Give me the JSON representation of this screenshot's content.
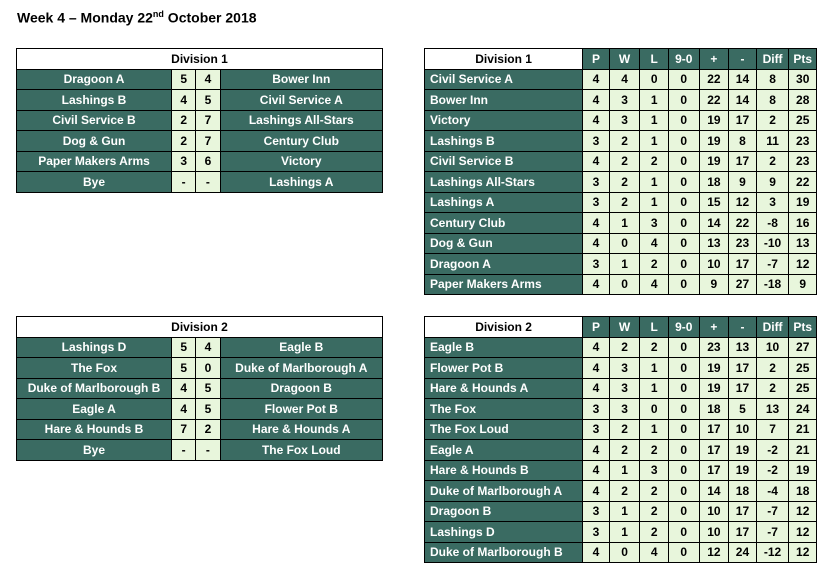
{
  "title": {
    "main": "Week 4 – Monday 22",
    "sup": "nd",
    "rest": " October 2018"
  },
  "fixtures": [
    {
      "division": "Division 1",
      "rows": [
        {
          "home": "Dragoon A",
          "hs": "5",
          "as": "4",
          "away": "Bower Inn"
        },
        {
          "home": "Lashings B",
          "hs": "4",
          "as": "5",
          "away": "Civil Service A"
        },
        {
          "home": "Civil Service B",
          "hs": "2",
          "as": "7",
          "away": "Lashings All-Stars"
        },
        {
          "home": "Dog & Gun",
          "hs": "2",
          "as": "7",
          "away": "Century Club"
        },
        {
          "home": "Paper Makers Arms",
          "hs": "3",
          "as": "6",
          "away": "Victory"
        },
        {
          "home": "Bye",
          "hs": "-",
          "as": "-",
          "away": "Lashings A"
        }
      ]
    },
    {
      "division": "Division 2",
      "rows": [
        {
          "home": "Lashings D",
          "hs": "5",
          "as": "4",
          "away": "Eagle B"
        },
        {
          "home": "The Fox",
          "hs": "5",
          "as": "0",
          "away": "Duke of Marlborough A"
        },
        {
          "home": "Duke of Marlborough B",
          "hs": "4",
          "as": "5",
          "away": "Dragoon B"
        },
        {
          "home": "Eagle A",
          "hs": "4",
          "as": "5",
          "away": "Flower Pot B"
        },
        {
          "home": "Hare & Hounds B",
          "hs": "7",
          "as": "2",
          "away": "Hare & Hounds A"
        },
        {
          "home": "Bye",
          "hs": "-",
          "as": "-",
          "away": "The Fox Loud"
        }
      ]
    }
  ],
  "league_headers": [
    "P",
    "W",
    "L",
    "9-0",
    "+",
    "-",
    "Diff",
    "Pts"
  ],
  "leagues": [
    {
      "division": "Division 1",
      "rows": [
        [
          "Civil Service A",
          "4",
          "4",
          "0",
          "0",
          "22",
          "14",
          "8",
          "30"
        ],
        [
          "Bower Inn",
          "4",
          "3",
          "1",
          "0",
          "22",
          "14",
          "8",
          "28"
        ],
        [
          "Victory",
          "4",
          "3",
          "1",
          "0",
          "19",
          "17",
          "2",
          "25"
        ],
        [
          "Lashings B",
          "3",
          "2",
          "1",
          "0",
          "19",
          "8",
          "11",
          "23"
        ],
        [
          "Civil Service B",
          "4",
          "2",
          "2",
          "0",
          "19",
          "17",
          "2",
          "23"
        ],
        [
          "Lashings All-Stars",
          "3",
          "2",
          "1",
          "0",
          "18",
          "9",
          "9",
          "22"
        ],
        [
          "Lashings A",
          "3",
          "2",
          "1",
          "0",
          "15",
          "12",
          "3",
          "19"
        ],
        [
          "Century Club",
          "4",
          "1",
          "3",
          "0",
          "14",
          "22",
          "-8",
          "16"
        ],
        [
          "Dog & Gun",
          "4",
          "0",
          "4",
          "0",
          "13",
          "23",
          "-10",
          "13"
        ],
        [
          "Dragoon A",
          "3",
          "1",
          "2",
          "0",
          "10",
          "17",
          "-7",
          "12"
        ],
        [
          "Paper Makers Arms",
          "4",
          "0",
          "4",
          "0",
          "9",
          "27",
          "-18",
          "9"
        ]
      ]
    },
    {
      "division": "Division 2",
      "rows": [
        [
          "Eagle B",
          "4",
          "2",
          "2",
          "0",
          "23",
          "13",
          "10",
          "27"
        ],
        [
          "Flower Pot B",
          "4",
          "3",
          "1",
          "0",
          "19",
          "17",
          "2",
          "25"
        ],
        [
          "Hare & Hounds A",
          "4",
          "3",
          "1",
          "0",
          "19",
          "17",
          "2",
          "25"
        ],
        [
          "The Fox",
          "3",
          "3",
          "0",
          "0",
          "18",
          "5",
          "13",
          "24"
        ],
        [
          "The Fox Loud",
          "3",
          "2",
          "1",
          "0",
          "17",
          "10",
          "7",
          "21"
        ],
        [
          "Eagle A",
          "4",
          "2",
          "2",
          "0",
          "17",
          "19",
          "-2",
          "21"
        ],
        [
          "Hare & Hounds B",
          "4",
          "1",
          "3",
          "0",
          "17",
          "19",
          "-2",
          "19"
        ],
        [
          "Duke of Marlborough A",
          "4",
          "2",
          "2",
          "0",
          "14",
          "18",
          "-4",
          "18"
        ],
        [
          "Dragoon B",
          "3",
          "1",
          "2",
          "0",
          "10",
          "17",
          "-7",
          "12"
        ],
        [
          "Lashings D",
          "3",
          "1",
          "2",
          "0",
          "10",
          "17",
          "-7",
          "12"
        ],
        [
          "Duke of Marlborough B",
          "4",
          "0",
          "4",
          "0",
          "12",
          "24",
          "-12",
          "12"
        ]
      ]
    }
  ]
}
